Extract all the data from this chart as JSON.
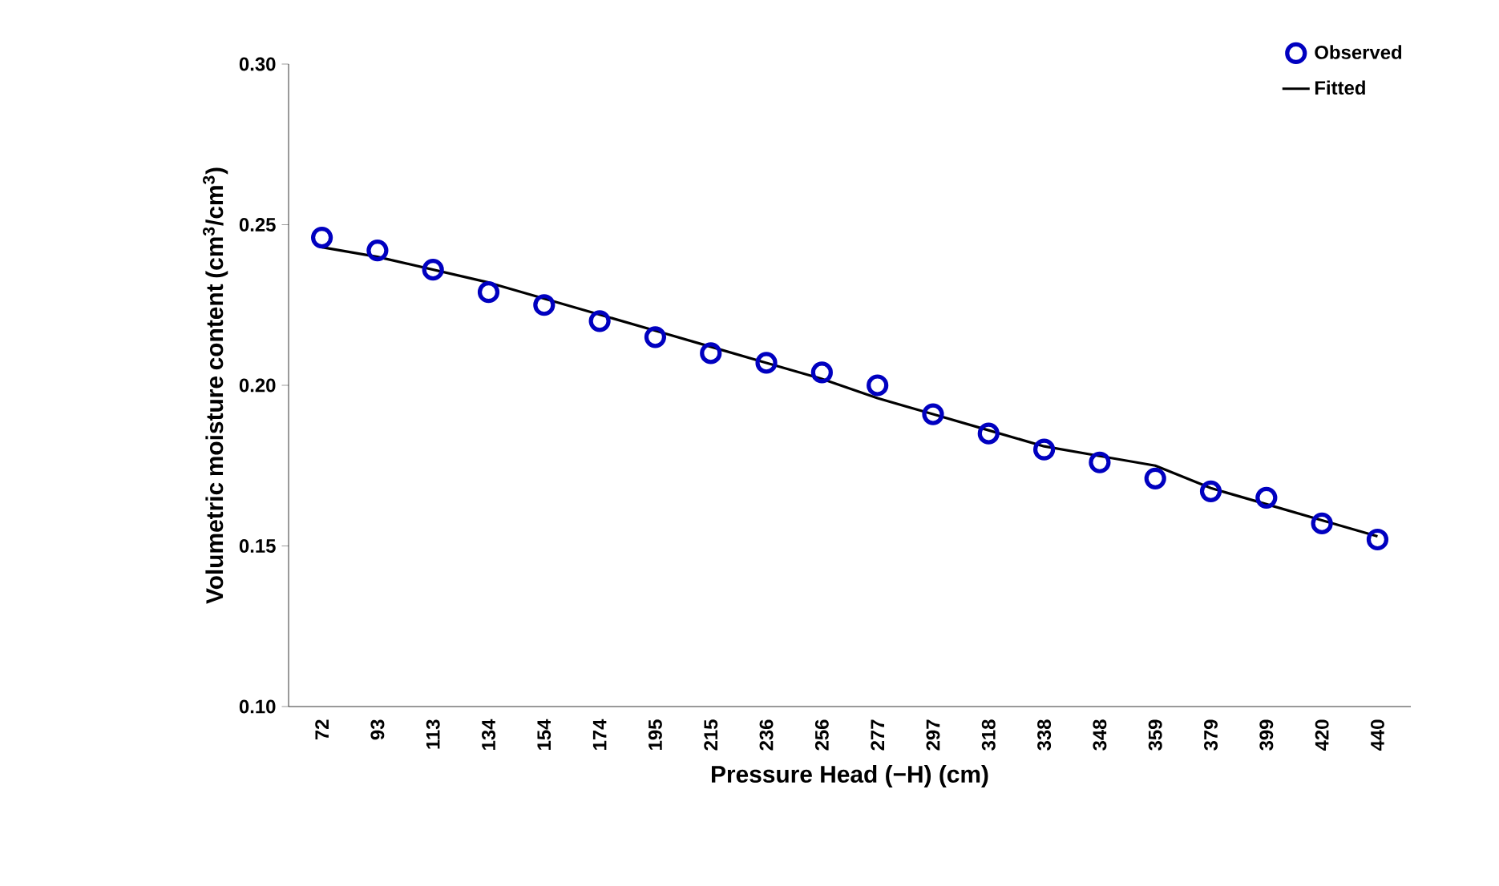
{
  "chart_data": {
    "type": "scatter",
    "xlabel": "Pressure Head (−H) (cm)",
    "ylabel": "Volumetric moisture content (cm$^{3}$/cm$^{3}$)",
    "categories": [
      "72",
      "93",
      "113",
      "134",
      "154",
      "174",
      "195",
      "215",
      "236",
      "256",
      "277",
      "297",
      "318",
      "338",
      "348",
      "359",
      "379",
      "399",
      "420",
      "440"
    ],
    "series": [
      {
        "name": "Observed",
        "marker": "circle",
        "color": "#0000c0",
        "values": [
          0.246,
          0.242,
          0.236,
          0.229,
          0.225,
          0.22,
          0.215,
          0.21,
          0.207,
          0.204,
          0.2,
          0.191,
          0.185,
          0.18,
          0.176,
          0.171,
          0.167,
          0.165,
          0.157,
          0.152
        ]
      },
      {
        "name": "Fitted",
        "type": "line",
        "marker": "none",
        "color": "#000000",
        "values": [
          0.243,
          0.24,
          0.236,
          0.232,
          0.227,
          0.222,
          0.217,
          0.212,
          0.207,
          0.202,
          0.196,
          0.191,
          0.186,
          0.181,
          0.178,
          0.175,
          0.168,
          0.163,
          0.158,
          0.153
        ]
      }
    ],
    "ylim": [
      0.1,
      0.3
    ],
    "yticks": [
      {
        "value": 0.1,
        "label": "0.10"
      },
      {
        "value": 0.15,
        "label": "0.15"
      },
      {
        "value": 0.2,
        "label": "0.20"
      },
      {
        "value": 0.25,
        "label": "0.25"
      },
      {
        "value": 0.3,
        "label": "0.30"
      }
    ],
    "grid": false,
    "legend": "top right"
  }
}
